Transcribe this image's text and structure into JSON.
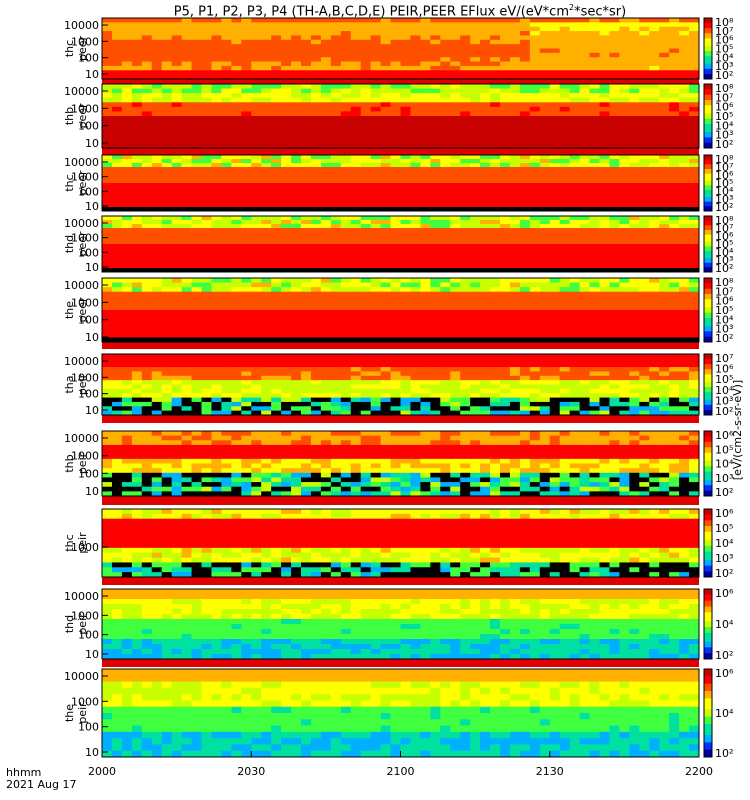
{
  "title": {
    "prefix": "P5, P1, P2, P3, P4 (TH-A,B,C,D,E) PEIR,PEER EFlux eV/(eV*cm",
    "sup": "2",
    "suffix": "*sec*sr)"
  },
  "footer": {
    "format": "hhmm",
    "date": "2021 Aug 17"
  },
  "colors": {
    "colormap": [
      "#000000",
      "#0000a0",
      "#0030ff",
      "#00b0ff",
      "#00e0a0",
      "#40ff40",
      "#c8ff00",
      "#ffff00",
      "#ffb000",
      "#ff5000",
      "#ff0000",
      "#c80000"
    ]
  },
  "chart_data": {
    "type": "heatmap",
    "x_ticks": [
      "2000",
      "2030",
      "2100",
      "2130",
      "2200"
    ],
    "x_range": [
      "2000",
      "2200"
    ],
    "x_label": "hhmm",
    "date": "2021 Aug 17",
    "colorbar_title": "[eV/(cm2-s-sr-eV)]",
    "panels": [
      {
        "label": [
          "thc",
          "peer"
        ],
        "yticks": [
          "10",
          "100",
          "1000",
          "10000"
        ],
        "cbticks": [
          "10²",
          "10³",
          "10⁴",
          "10⁵",
          "10⁶",
          "10⁷",
          "10⁸"
        ],
        "profile": "electron_ring"
      },
      {
        "label": [
          "thb",
          "peer"
        ],
        "yticks": [
          "10",
          "100",
          "1000",
          "10000"
        ],
        "cbticks": [
          "10²",
          "10³",
          "10⁴",
          "10⁵",
          "10⁶",
          "10⁷",
          "10⁸"
        ],
        "profile": "electron_low"
      },
      {
        "label": [
          "thc",
          "peer"
        ],
        "yticks": [
          "10",
          "100",
          "1000",
          "10000"
        ],
        "cbticks": [
          "10²",
          "10³",
          "10⁴",
          "10⁵",
          "10⁶",
          "10⁷",
          "10⁸"
        ],
        "profile": "electron_mid"
      },
      {
        "label": [
          "thd",
          "peer"
        ],
        "yticks": [
          "10",
          "100",
          "1000",
          "10000"
        ],
        "cbticks": [
          "10²",
          "10³",
          "10⁴",
          "10⁵",
          "10⁶",
          "10⁷",
          "10⁸"
        ],
        "profile": "electron_mid"
      },
      {
        "label": [
          "the",
          "peer"
        ],
        "yticks": [
          "10",
          "100",
          "1000",
          "10000"
        ],
        "cbticks": [
          "10²",
          "10³",
          "10⁴",
          "10⁵",
          "10⁶",
          "10⁷",
          "10⁸"
        ],
        "profile": "electron_mid"
      },
      {
        "label": [
          "tha",
          "peir"
        ],
        "yticks": [
          "10",
          "100",
          "1000",
          "10000"
        ],
        "cbticks": [
          "10²",
          "10³",
          "10⁴",
          "10⁵",
          "10⁶",
          "10⁷"
        ],
        "profile": "ion_high"
      },
      {
        "label": [
          "thb",
          "peir"
        ],
        "yticks": [
          "10",
          "100",
          "1000",
          "10000"
        ],
        "cbticks": [
          "10²",
          "10³",
          "10⁴",
          "10⁵",
          "10⁶"
        ],
        "profile": "ion_band"
      },
      {
        "label": [
          "thc",
          "peir"
        ],
        "yticks": [
          "1000"
        ],
        "cbticks": [
          "10²",
          "10³",
          "10⁴",
          "10⁵",
          "10⁶"
        ],
        "profile": "ion_narrow"
      },
      {
        "label": [
          "thd",
          "peir"
        ],
        "yticks": [
          "10",
          "100",
          "1000",
          "10000"
        ],
        "cbticks": [
          "10²",
          "10⁴",
          "10⁶"
        ],
        "profile": "ion_green"
      },
      {
        "label": [
          "the",
          "peir"
        ],
        "yticks": [
          "10",
          "100",
          "1000",
          "10000"
        ],
        "cbticks": [
          "10²",
          "10⁴",
          "10⁶"
        ],
        "profile": "ion_green"
      }
    ]
  }
}
